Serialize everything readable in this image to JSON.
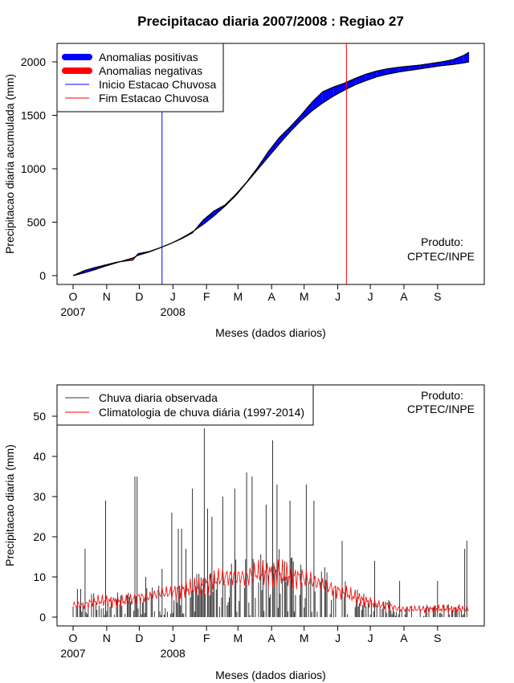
{
  "chart_data": [
    {
      "type": "area",
      "title": "Precipitacao diaria 2007/2008 : Regiao 27",
      "xlabel": "Meses (dados diarios)",
      "ylabel": "Precipitacao diaria acumulada (mm)",
      "ylim": [
        0,
        2100
      ],
      "yticks": [
        0,
        500,
        1000,
        1500,
        2000
      ],
      "month_ticks": [
        "O",
        "N",
        "D",
        "J",
        "F",
        "M",
        "A",
        "M",
        "J",
        "J",
        "A",
        "S"
      ],
      "month_day_offsets": [
        0,
        31,
        61,
        92,
        123,
        152,
        183,
        213,
        244,
        274,
        305,
        336
      ],
      "year_labels": [
        {
          "label": "2007",
          "day": 0
        },
        {
          "label": "2008",
          "day": 92
        }
      ],
      "n_days": 366,
      "legend": {
        "position": "top-left",
        "entries": [
          {
            "label": "Anomalias positivas",
            "color": "#0000ff",
            "style": "thick"
          },
          {
            "label": "Anomalias negativas",
            "color": "#ff0000",
            "style": "thick"
          },
          {
            "label": "Inicio Estacao Chuvosa",
            "color": "#0000ff",
            "style": "thin"
          },
          {
            "label": "Fim Estacao Chuvosa",
            "color": "#ff0000",
            "style": "thin"
          }
        ]
      },
      "rainy_season_start_day": 82,
      "rainy_season_end_day": 252,
      "climatology_cumulative": {
        "day": [
          0,
          10,
          20,
          30,
          40,
          50,
          55,
          60,
          70,
          80,
          90,
          100,
          110,
          120,
          130,
          140,
          150,
          160,
          170,
          180,
          190,
          200,
          210,
          220,
          230,
          240,
          250,
          260,
          270,
          280,
          290,
          300,
          310,
          320,
          330,
          340,
          350,
          360,
          365
        ],
        "value": [
          0,
          25,
          55,
          90,
          120,
          150,
          165,
          190,
          220,
          260,
          300,
          350,
          410,
          480,
          560,
          650,
          750,
          870,
          990,
          1110,
          1230,
          1345,
          1450,
          1540,
          1615,
          1680,
          1735,
          1785,
          1825,
          1860,
          1885,
          1905,
          1920,
          1935,
          1950,
          1965,
          1975,
          1990,
          2000
        ]
      },
      "observed_cumulative": {
        "day": [
          0,
          10,
          20,
          30,
          40,
          50,
          55,
          60,
          70,
          80,
          90,
          100,
          110,
          120,
          130,
          140,
          150,
          160,
          170,
          180,
          190,
          200,
          210,
          220,
          230,
          240,
          250,
          260,
          270,
          280,
          290,
          300,
          310,
          320,
          330,
          340,
          350,
          360,
          365
        ],
        "value": [
          0,
          45,
          75,
          100,
          125,
          140,
          145,
          205,
          225,
          260,
          300,
          345,
          400,
          520,
          605,
          660,
          760,
          875,
          1010,
          1160,
          1290,
          1390,
          1500,
          1620,
          1720,
          1765,
          1800,
          1845,
          1885,
          1915,
          1935,
          1950,
          1960,
          1970,
          1985,
          2000,
          2020,
          2060,
          2090
        ]
      },
      "annotation": [
        "Produto:",
        "CPTEC/INPE"
      ]
    },
    {
      "type": "line",
      "title": "",
      "xlabel": "Meses (dados diarios)",
      "ylabel": "Precipitacao diaria (mm)",
      "ylim": [
        0,
        57
      ],
      "yticks": [
        0,
        10,
        20,
        30,
        40,
        50
      ],
      "month_ticks": [
        "O",
        "N",
        "D",
        "J",
        "F",
        "M",
        "A",
        "M",
        "J",
        "J",
        "A",
        "S"
      ],
      "month_day_offsets": [
        0,
        31,
        61,
        92,
        123,
        152,
        183,
        213,
        244,
        274,
        305,
        336
      ],
      "year_labels": [
        {
          "label": "2007",
          "day": 0
        },
        {
          "label": "2008",
          "day": 92
        }
      ],
      "n_days": 366,
      "legend": {
        "position": "top-left",
        "entries": [
          {
            "label": "Chuva diaria observada",
            "color": "#333333"
          },
          {
            "label": "Climatologia de chuva diária (1997-2014)",
            "color": "#ff0000"
          }
        ]
      },
      "observed_peaks": {
        "day": [
          4,
          7,
          11,
          30,
          57,
          59,
          67,
          82,
          91,
          97,
          100,
          104,
          110,
          121,
          124,
          128,
          138,
          149,
          160,
          165,
          178,
          184,
          188,
          200,
          215,
          222,
          248,
          278,
          301,
          336,
          361,
          363
        ],
        "value": [
          7,
          7,
          17,
          29,
          35,
          35,
          10,
          12,
          26,
          22,
          22,
          17,
          32,
          47,
          27,
          25,
          30,
          32,
          36,
          35,
          28,
          44,
          33,
          29,
          33,
          29,
          19,
          14,
          9,
          9,
          17,
          19
        ]
      },
      "climatology_daily": {
        "day": [
          0,
          10,
          20,
          30,
          40,
          50,
          60,
          70,
          80,
          90,
          100,
          110,
          120,
          130,
          140,
          150,
          160,
          170,
          180,
          190,
          200,
          210,
          220,
          230,
          240,
          250,
          260,
          270,
          280,
          290,
          300,
          310,
          320,
          330,
          340,
          350,
          360,
          365
        ],
        "value": [
          3,
          3,
          4,
          4,
          4,
          4,
          5,
          5,
          6,
          6,
          7,
          7,
          8,
          9,
          10,
          10,
          10,
          11,
          11,
          11,
          10,
          10,
          9,
          8,
          7,
          6,
          5,
          4,
          3,
          3,
          2,
          2,
          2,
          2,
          2,
          2,
          2,
          2
        ]
      },
      "annotation": [
        "Produto:",
        "CPTEC/INPE"
      ]
    }
  ]
}
